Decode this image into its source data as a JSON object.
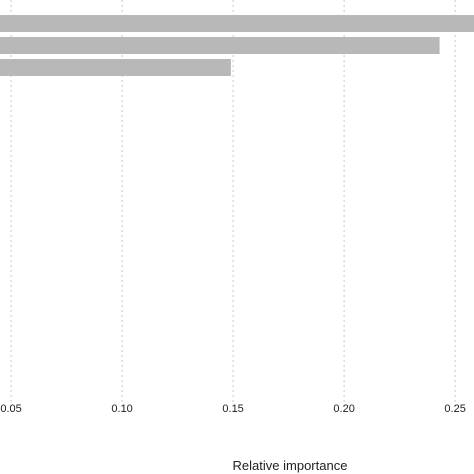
{
  "chart_data": {
    "type": "bar",
    "orientation": "horizontal",
    "xlabel": "Relative importance",
    "xlim": [
      0.045,
      0.2585
    ],
    "grid": true,
    "bar_color": "#b8b8b8",
    "grid_color": "#c8c8c8",
    "x_ticks": [
      {
        "value": 0.05,
        "label": "0.05"
      },
      {
        "value": 0.1,
        "label": "0.10"
      },
      {
        "value": 0.15,
        "label": "0.15"
      },
      {
        "value": 0.2,
        "label": "0.20"
      },
      {
        "value": 0.25,
        "label": "0.25"
      }
    ],
    "values": [
      0.26,
      0.243,
      0.149
    ]
  }
}
